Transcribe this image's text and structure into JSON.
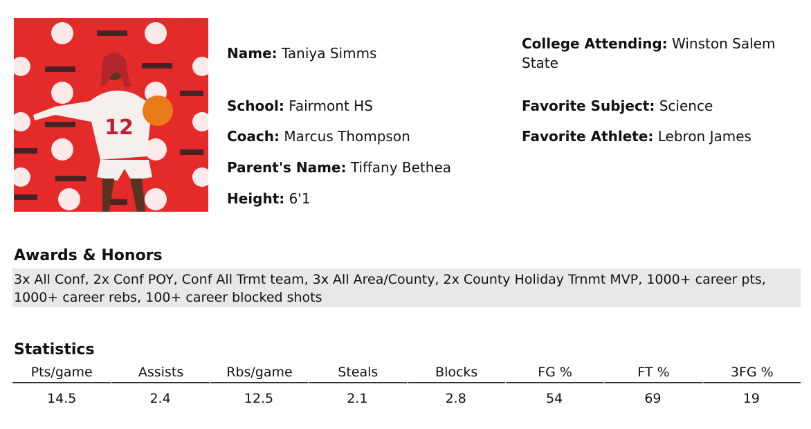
{
  "profile": {
    "left_fields": [
      {
        "label": "Name:",
        "value": "Taniya Simms"
      },
      {
        "label": "School:",
        "value": "Fairmont HS"
      },
      {
        "label": "Coach:",
        "value": "Marcus Thompson"
      },
      {
        "label": "Parent's Name:",
        "value": "Tiffany Bethea"
      },
      {
        "label": "Height:",
        "value": "6'1"
      }
    ],
    "right_fields": [
      {
        "label": "College Attending:",
        "value": "Winston Salem State"
      },
      {
        "label": "Favorite Subject:",
        "value": "Science"
      },
      {
        "label": "Favorite Athlete:",
        "value": "Lebron James"
      }
    ]
  },
  "awards": {
    "title": "Awards & Honors",
    "text": "3x All Conf, 2x Conf POY, Conf All Trmt team, 3x All Area/County, 2x County Holiday Trnmt MVP, 1000+ career pts, 1000+ career rebs, 100+ career blocked shots"
  },
  "statistics": {
    "title": "Statistics",
    "headers": [
      "Pts/game",
      "Assists",
      "Rbs/game",
      "Steals",
      "Blocks",
      "FG %",
      "FT %",
      "3FG %"
    ],
    "values": [
      "14.5",
      "2.4",
      "12.5",
      "2.1",
      "2.8",
      "54",
      "69",
      "19"
    ]
  }
}
